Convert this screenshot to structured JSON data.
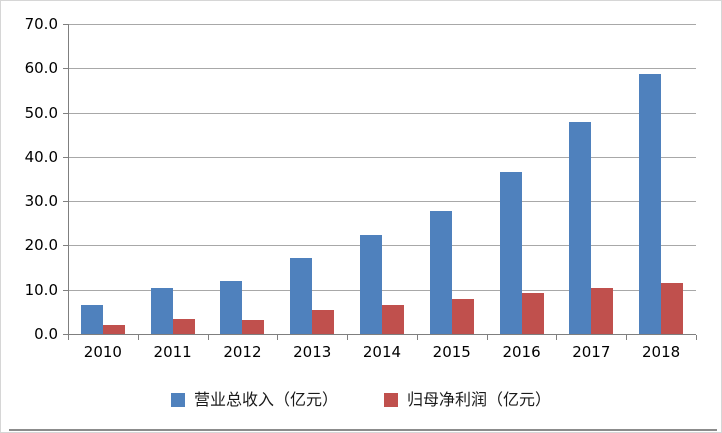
{
  "chart_data": {
    "type": "bar",
    "categories": [
      "2010",
      "2011",
      "2012",
      "2013",
      "2014",
      "2015",
      "2016",
      "2017",
      "2018"
    ],
    "series": [
      {
        "name": "营业总收入（亿元）",
        "color": "#4F81BD",
        "values": [
          6.6,
          10.4,
          12.0,
          17.2,
          22.4,
          27.7,
          36.5,
          47.8,
          58.8
        ]
      },
      {
        "name": "归母净利润（亿元）",
        "color": "#C0504D",
        "values": [
          2.1,
          3.5,
          3.1,
          5.5,
          6.5,
          8.0,
          9.3,
          10.5,
          11.6
        ]
      }
    ],
    "ylim": [
      0,
      70
    ],
    "y_tick_step": 10,
    "y_tick_labels": [
      "0.0",
      "10.0",
      "20.0",
      "30.0",
      "40.0",
      "50.0",
      "60.0",
      "70.0"
    ],
    "grid": true,
    "legend_position": "bottom",
    "xlabel": "",
    "ylabel": ""
  },
  "colors": {
    "gridline": "#a8a8a8",
    "axis": "#7f7f7f",
    "text": "#000000",
    "bottom_rule": "#8c8c8c"
  }
}
